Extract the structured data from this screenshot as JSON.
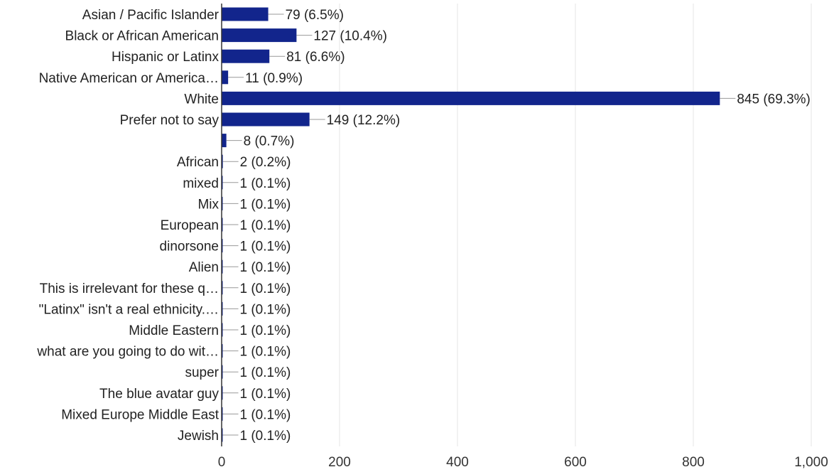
{
  "chart_data": {
    "type": "bar",
    "orientation": "horizontal",
    "categories": [
      "Asian / Pacific Islander",
      "Black or African American",
      "Hispanic or Latinx",
      "Native American or America…",
      "White",
      "Prefer not to say",
      "",
      "African",
      "mixed",
      "Mix",
      "European",
      "dinorsone",
      "Alien",
      "This is irrelevant for these q…",
      "\"Latinx\" isn't a real ethnicity.…",
      "Middle Eastern",
      "what are you going to do wit…",
      "super",
      "The blue avatar guy",
      "Mixed Europe Middle East",
      "Jewish"
    ],
    "values": [
      79,
      127,
      81,
      11,
      845,
      149,
      8,
      2,
      1,
      1,
      1,
      1,
      1,
      1,
      1,
      1,
      1,
      1,
      1,
      1,
      1
    ],
    "data_labels": [
      "79 (6.5%)",
      "127 (10.4%)",
      "81 (6.6%)",
      "11 (0.9%)",
      "845 (69.3%)",
      "149 (12.2%)",
      "8 (0.7%)",
      "2 (0.2%)",
      "1 (0.1%)",
      "1 (0.1%)",
      "1 (0.1%)",
      "1 (0.1%)",
      "1 (0.1%)",
      "1 (0.1%)",
      "1 (0.1%)",
      "1 (0.1%)",
      "1 (0.1%)",
      "1 (0.1%)",
      "1 (0.1%)",
      "1 (0.1%)",
      "1 (0.1%)"
    ],
    "x_ticks": [
      0,
      200,
      400,
      600,
      800,
      1000
    ],
    "x_tick_labels": [
      "0",
      "200",
      "400",
      "600",
      "800",
      "1,000"
    ],
    "xlim": [
      0,
      1000
    ],
    "grid": true,
    "legend": "none",
    "bar_color": "#12258c",
    "gridline_color": "#e6e6e6",
    "axis_color": "#333333",
    "leader_color": "#999999"
  }
}
